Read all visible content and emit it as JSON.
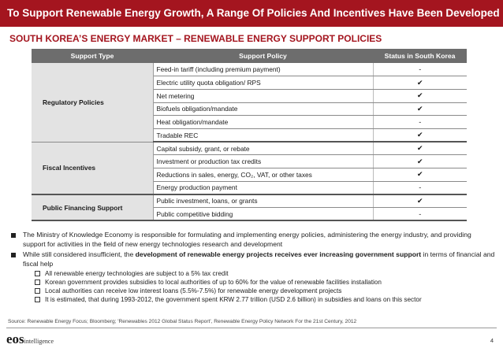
{
  "header": {
    "title": "To Support Renewable Energy Growth, A Range Of Policies And Incentives Have Been Developed",
    "subtitle": "SOUTH KOREA’S ENERGY MARKET – RENEWABLE ENERGY SUPPORT POLICIES"
  },
  "table": {
    "headers": [
      "Support Type",
      "Support Policy",
      "Status in South Korea"
    ],
    "groups": [
      {
        "type": "Regulatory Policies",
        "rows": [
          {
            "policy": "Feed-in tariff (including premium payment)",
            "status": "-"
          },
          {
            "policy": "Electric utility quota obligation/ RPS",
            "status": "✔"
          },
          {
            "policy": "Net metering",
            "status": "✔"
          },
          {
            "policy": "Biofuels obligation/mandate",
            "status": "✔"
          },
          {
            "policy": "Heat obligation/mandate",
            "status": "-"
          },
          {
            "policy": "Tradable REC",
            "status": "✔"
          }
        ]
      },
      {
        "type": "Fiscal Incentives",
        "rows": [
          {
            "policy": "Capital subsidy, grant, or rebate",
            "status": "✔"
          },
          {
            "policy": "Investment or production tax credits",
            "status": "✔"
          },
          {
            "policy": "Reductions in sales, energy, CO₂, VAT, or other taxes",
            "status": "✔"
          },
          {
            "policy": "Energy production payment",
            "status": "-"
          }
        ]
      },
      {
        "type": "Public Financing Support",
        "rows": [
          {
            "policy": "Public investment, loans, or grants",
            "status": "✔"
          },
          {
            "policy": "Public competitive bidding",
            "status": "-"
          }
        ]
      }
    ]
  },
  "bullets": {
    "first": "The Ministry of Knowledge Economy is responsible for formulating and implementing energy policies, administering the energy industry, and providing support for activities in the field of new energy technologies research and development",
    "second_prefix": "While still considered insufficient, the ",
    "second_bold": "development of renewable energy projects receives ever increasing government support",
    "second_suffix": " in terms of financial and fiscal help",
    "sub_items": [
      "All renewable energy technologies are subject to a 5% tax credit",
      "Korean government provides subsidies to local authorities of up to 60% for the value of renewable facilities installation",
      "Local authorities can receive low interest loans (5.5%-7.5%) for renewable energy development projects",
      "It is estimated, that during 1993-2012, the government spent KRW 2.77 trillion (USD 2.6 billion) in subsidies and loans on this sector"
    ]
  },
  "footer": {
    "source": "Source: Renewable Energy Focus; Bloomberg; 'Renewables 2012 Global Status Report', Renewable Energy Policy Network For the 21st Century, 2012",
    "logo_main": "eos",
    "logo_sub": "intelligence",
    "page_number": "4"
  }
}
